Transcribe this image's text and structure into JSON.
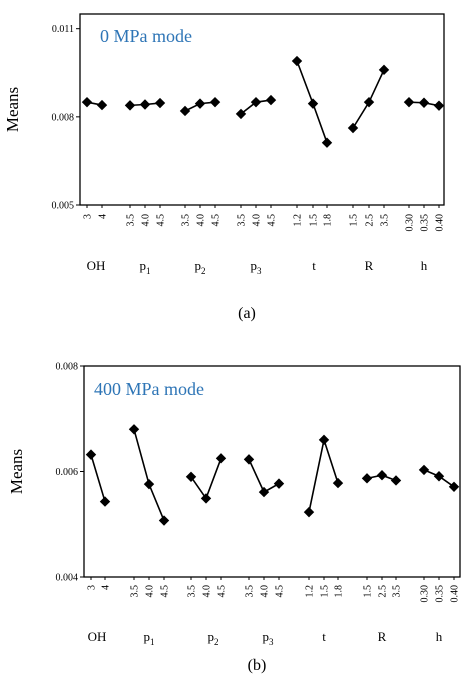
{
  "chart_data": [
    {
      "type": "line",
      "caption": "(a)",
      "mode_label": "0 MPa mode",
      "ylabel": "Means",
      "ylim": [
        0.005,
        0.0115
      ],
      "yticks": [
        "0.011",
        "0.008",
        "0.005"
      ],
      "ytick_values": [
        0.011,
        0.008,
        0.005
      ],
      "grid": false,
      "factors": [
        {
          "name": "OH",
          "sub": "",
          "levels": [
            "3",
            "4"
          ],
          "values": [
            0.0085,
            0.0084
          ]
        },
        {
          "name": "p",
          "sub": "1",
          "levels": [
            "3.5",
            "4.0",
            "4.5"
          ],
          "values": [
            0.00839,
            0.00842,
            0.00847
          ]
        },
        {
          "name": "p",
          "sub": "2",
          "levels": [
            "3.5",
            "4.0",
            "4.5"
          ],
          "values": [
            0.0082,
            0.00845,
            0.0085
          ]
        },
        {
          "name": "p",
          "sub": "3",
          "levels": [
            "3.5",
            "4.0",
            "4.5"
          ],
          "values": [
            0.0081,
            0.0085,
            0.00857
          ]
        },
        {
          "name": "t",
          "sub": "",
          "levels": [
            "1.2",
            "1.5",
            "1.8"
          ],
          "values": [
            0.0099,
            0.00845,
            0.00712
          ]
        },
        {
          "name": "R",
          "sub": "",
          "levels": [
            "1.5",
            "2.5",
            "3.5"
          ],
          "values": [
            0.00762,
            0.0085,
            0.0096
          ]
        },
        {
          "name": "h",
          "sub": "",
          "levels": [
            "0.30",
            "0.35",
            "0.40"
          ],
          "values": [
            0.0085,
            0.00848,
            0.00838
          ]
        }
      ]
    },
    {
      "type": "line",
      "caption": "(b)",
      "mode_label": "400 MPa mode",
      "ylabel": "Means",
      "ylim": [
        0.004,
        0.008
      ],
      "yticks": [
        "0.008",
        "0.006",
        "0.004"
      ],
      "ytick_values": [
        0.008,
        0.006,
        0.004
      ],
      "grid": false,
      "factors": [
        {
          "name": "OH",
          "sub": "",
          "levels": [
            "3",
            "4"
          ],
          "values": [
            0.00632,
            0.00543
          ]
        },
        {
          "name": "p",
          "sub": "1",
          "levels": [
            "3.5",
            "4.0",
            "4.5"
          ],
          "values": [
            0.0068,
            0.00576,
            0.00507
          ]
        },
        {
          "name": "p",
          "sub": "2",
          "levels": [
            "3.5",
            "4.0",
            "4.5"
          ],
          "values": [
            0.0059,
            0.00549,
            0.00625
          ]
        },
        {
          "name": "p",
          "sub": "3",
          "levels": [
            "3.5",
            "4.0",
            "4.5"
          ],
          "values": [
            0.00623,
            0.00561,
            0.00577
          ]
        },
        {
          "name": "t",
          "sub": "",
          "levels": [
            "1.2",
            "1.5",
            "1.8"
          ],
          "values": [
            0.00523,
            0.0066,
            0.00578
          ]
        },
        {
          "name": "R",
          "sub": "",
          "levels": [
            "1.5",
            "2.5",
            "3.5"
          ],
          "values": [
            0.00587,
            0.00593,
            0.00583
          ]
        },
        {
          "name": "h",
          "sub": "",
          "levels": [
            "0.30",
            "0.35",
            "0.40"
          ],
          "values": [
            0.00603,
            0.00591,
            0.00571
          ]
        }
      ]
    }
  ]
}
